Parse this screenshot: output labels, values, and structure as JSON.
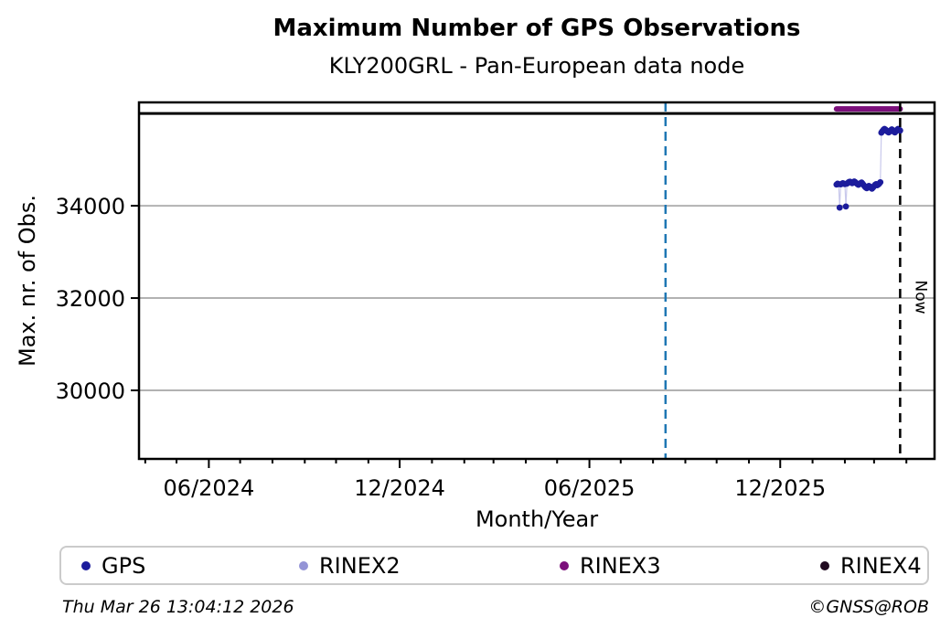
{
  "chart_data": {
    "type": "scatter",
    "title": "Maximum Number of GPS Observations",
    "subtitle": "KLY200GRL - Pan-European data node",
    "xlabel": "Month/Year",
    "ylabel": "Max. nr. of Obs.",
    "x_axis": {
      "min_date": "2024-03-26",
      "max_date": "2026-04-28",
      "major_ticks": [
        {
          "date": "2024-06-01",
          "label": "06/2024"
        },
        {
          "date": "2024-12-01",
          "label": "12/2024"
        },
        {
          "date": "2025-06-01",
          "label": "06/2025"
        },
        {
          "date": "2025-12-01",
          "label": "12/2025"
        }
      ],
      "minor_ticks": "monthly"
    },
    "y_axis": {
      "min": 28515,
      "max": 36240,
      "ticks": [
        {
          "value": 30000,
          "label": "30000"
        },
        {
          "value": 32000,
          "label": "32000"
        },
        {
          "value": 34000,
          "label": "34000"
        }
      ],
      "gridlines": true,
      "gridline_color": "#b2b2b2"
    },
    "reference_lines": {
      "max_obs": {
        "value": 36000,
        "color": "#000000",
        "style": "solid",
        "orientation": "horizontal"
      },
      "event": {
        "date": "2025-08-13",
        "color": "#1f77b4",
        "style": "dashed",
        "orientation": "vertical"
      },
      "now": {
        "date": "2026-03-26",
        "label": "Now",
        "color": "#000000",
        "style": "dashed",
        "orientation": "vertical"
      }
    },
    "series": [
      {
        "name": "GPS",
        "color": "#1c1c9c",
        "marker": "circle",
        "connector_color": "#c9c9ec",
        "points": [
          [
            "2026-01-24",
            34460
          ],
          [
            "2026-01-25",
            34480
          ],
          [
            "2026-01-26",
            34470
          ],
          [
            "2026-01-27",
            33960
          ],
          [
            "2026-01-28",
            34465
          ],
          [
            "2026-01-29",
            34475
          ],
          [
            "2026-01-30",
            34490
          ],
          [
            "2026-01-31",
            34480
          ],
          [
            "2026-02-01",
            34470
          ],
          [
            "2026-02-02",
            33985
          ],
          [
            "2026-02-03",
            34480
          ],
          [
            "2026-02-04",
            34500
          ],
          [
            "2026-02-05",
            34515
          ],
          [
            "2026-02-06",
            34520
          ],
          [
            "2026-02-07",
            34505
          ],
          [
            "2026-02-08",
            34490
          ],
          [
            "2026-02-09",
            34510
          ],
          [
            "2026-02-10",
            34525
          ],
          [
            "2026-02-11",
            34510
          ],
          [
            "2026-02-12",
            34490
          ],
          [
            "2026-02-13",
            34470
          ],
          [
            "2026-02-14",
            34455
          ],
          [
            "2026-02-15",
            34470
          ],
          [
            "2026-02-16",
            34490
          ],
          [
            "2026-02-17",
            34505
          ],
          [
            "2026-02-18",
            34480
          ],
          [
            "2026-02-19",
            34450
          ],
          [
            "2026-02-20",
            34420
          ],
          [
            "2026-02-21",
            34395
          ],
          [
            "2026-02-22",
            34380
          ],
          [
            "2026-02-23",
            34405
          ],
          [
            "2026-02-24",
            34430
          ],
          [
            "2026-02-25",
            34415
          ],
          [
            "2026-02-26",
            34390
          ],
          [
            "2026-02-27",
            34370
          ],
          [
            "2026-02-28",
            34395
          ],
          [
            "2026-03-01",
            34425
          ],
          [
            "2026-03-02",
            34455
          ],
          [
            "2026-03-03",
            34470
          ],
          [
            "2026-03-04",
            34445
          ],
          [
            "2026-03-05",
            34460
          ],
          [
            "2026-03-06",
            34480
          ],
          [
            "2026-03-07",
            34510
          ],
          [
            "2026-03-08",
            35585
          ],
          [
            "2026-03-09",
            35615
          ],
          [
            "2026-03-10",
            35645
          ],
          [
            "2026-03-11",
            35665
          ],
          [
            "2026-03-12",
            35650
          ],
          [
            "2026-03-13",
            35625
          ],
          [
            "2026-03-14",
            35605
          ],
          [
            "2026-03-15",
            35590
          ],
          [
            "2026-03-16",
            35610
          ],
          [
            "2026-03-17",
            35635
          ],
          [
            "2026-03-18",
            35655
          ],
          [
            "2026-03-19",
            35630
          ],
          [
            "2026-03-20",
            35605
          ],
          [
            "2026-03-21",
            35590
          ],
          [
            "2026-03-22",
            35615
          ],
          [
            "2026-03-23",
            35645
          ],
          [
            "2026-03-24",
            35665
          ],
          [
            "2026-03-25",
            35650
          ],
          [
            "2026-03-26",
            35630
          ]
        ]
      },
      {
        "name": "RINEX2",
        "color": "#9494d6",
        "marker": "circle",
        "points": []
      },
      {
        "name": "RINEX3",
        "color": "#7b0f7b",
        "marker": "circle",
        "line_width": 6,
        "points": [
          [
            "2026-01-24",
            36100
          ],
          [
            "2026-03-26",
            36100
          ]
        ]
      },
      {
        "name": "RINEX4",
        "color": "#200a20",
        "marker": "circle",
        "points": []
      }
    ],
    "legend": {
      "position": "bottom",
      "entries": [
        "GPS",
        "RINEX2",
        "RINEX3",
        "RINEX4"
      ]
    }
  },
  "footer": {
    "timestamp": "Thu Mar 26 13:04:12 2026",
    "copyright": "©GNSS@ROB"
  }
}
